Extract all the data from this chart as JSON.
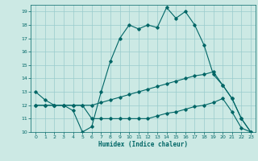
{
  "xlabel": "Humidex (Indice chaleur)",
  "bg_color": "#cce9e4",
  "line_color": "#006666",
  "grid_color": "#99cccc",
  "xlim": [
    -0.5,
    23.5
  ],
  "ylim": [
    10,
    19.5
  ],
  "yticks": [
    10,
    11,
    12,
    13,
    14,
    15,
    16,
    17,
    18,
    19
  ],
  "xticks": [
    0,
    1,
    2,
    3,
    4,
    5,
    6,
    7,
    8,
    9,
    10,
    11,
    12,
    13,
    14,
    15,
    16,
    17,
    18,
    19,
    20,
    21,
    22,
    23
  ],
  "series": [
    {
      "x": [
        0,
        1,
        2,
        3,
        4,
        5,
        6,
        7,
        8,
        9,
        10,
        11,
        12,
        13,
        14,
        15,
        16,
        17,
        18,
        19,
        20,
        21,
        22,
        23
      ],
      "y": [
        13,
        12.4,
        12.0,
        12.0,
        11.6,
        10.0,
        10.4,
        13.0,
        15.3,
        17.0,
        18.0,
        17.7,
        18.0,
        17.8,
        19.3,
        18.5,
        19.0,
        18.0,
        16.5,
        14.3,
        13.5,
        12.5,
        11.0,
        10.0
      ]
    },
    {
      "x": [
        0,
        1,
        2,
        3,
        4,
        5,
        6,
        7,
        8,
        9,
        10,
        11,
        12,
        13,
        14,
        15,
        16,
        17,
        18,
        19,
        20,
        21,
        22,
        23
      ],
      "y": [
        12.0,
        12.0,
        12.0,
        12.0,
        12.0,
        12.0,
        12.0,
        12.2,
        12.4,
        12.6,
        12.8,
        13.0,
        13.2,
        13.4,
        13.6,
        13.8,
        14.0,
        14.2,
        14.3,
        14.5,
        13.5,
        12.5,
        11.0,
        10.0
      ]
    },
    {
      "x": [
        0,
        1,
        2,
        3,
        4,
        5,
        6,
        7,
        8,
        9,
        10,
        11,
        12,
        13,
        14,
        15,
        16,
        17,
        18,
        19,
        20,
        21,
        22,
        23
      ],
      "y": [
        12.0,
        12.0,
        12.0,
        12.0,
        12.0,
        12.0,
        11.0,
        11.0,
        11.0,
        11.0,
        11.0,
        11.0,
        11.0,
        11.2,
        11.4,
        11.5,
        11.7,
        11.9,
        12.0,
        12.2,
        12.5,
        11.5,
        10.3,
        10.0
      ]
    }
  ]
}
